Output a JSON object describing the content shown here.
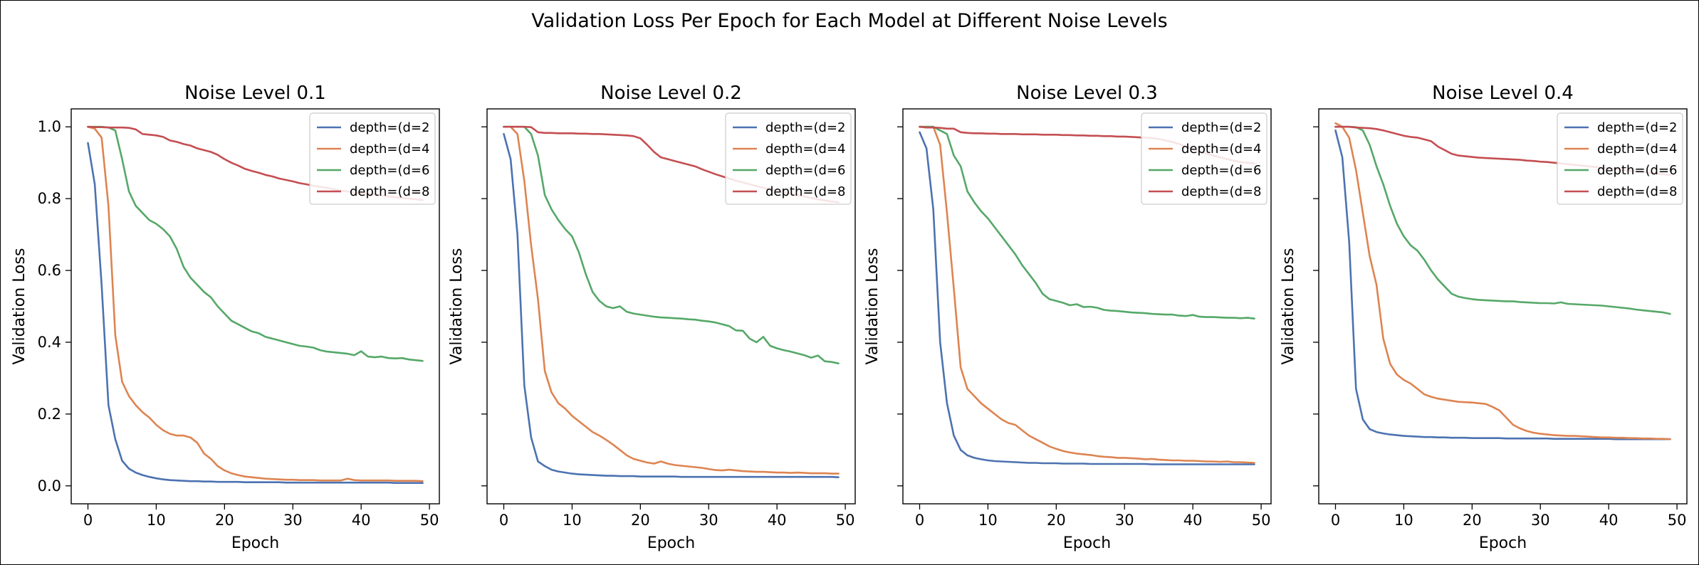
{
  "figure": {
    "title": "Validation Loss Per Epoch for Each Model at Different Noise Levels"
  },
  "colors": {
    "depth=(d=2": "#4c72b0",
    "depth=(d=4": "#dd8452",
    "depth=(d=6": "#55a868",
    "depth=(d=8": "#c44e52"
  },
  "chart_data": [
    {
      "type": "line",
      "title": "Noise Level 0.1",
      "xlabel": "Epoch",
      "ylabel": "Validation Loss",
      "xlim": [
        -2.45,
        51.45
      ],
      "ylim": [
        -0.05,
        1.05
      ],
      "xticks": [
        0,
        10,
        20,
        30,
        40,
        50
      ],
      "yticks": [
        0.0,
        0.2,
        0.4,
        0.6,
        0.8,
        1.0
      ],
      "legend": "top-right",
      "series": [
        {
          "name": "depth=(d=2",
          "values": [
            0.955,
            0.84,
            0.56,
            0.225,
            0.13,
            0.07,
            0.048,
            0.037,
            0.03,
            0.025,
            0.021,
            0.018,
            0.016,
            0.015,
            0.014,
            0.013,
            0.013,
            0.012,
            0.012,
            0.011,
            0.011,
            0.011,
            0.011,
            0.01,
            0.01,
            0.01,
            0.01,
            0.01,
            0.01,
            0.009,
            0.009,
            0.009,
            0.009,
            0.009,
            0.009,
            0.009,
            0.009,
            0.009,
            0.009,
            0.009,
            0.009,
            0.009,
            0.009,
            0.009,
            0.009,
            0.008,
            0.008,
            0.008,
            0.008,
            0.008
          ]
        },
        {
          "name": "depth=(d=4",
          "values": [
            1.0,
            0.995,
            0.97,
            0.78,
            0.42,
            0.29,
            0.25,
            0.225,
            0.205,
            0.19,
            0.17,
            0.155,
            0.145,
            0.14,
            0.14,
            0.135,
            0.12,
            0.09,
            0.075,
            0.055,
            0.043,
            0.035,
            0.03,
            0.026,
            0.024,
            0.022,
            0.02,
            0.019,
            0.018,
            0.017,
            0.017,
            0.016,
            0.016,
            0.016,
            0.015,
            0.015,
            0.015,
            0.015,
            0.02,
            0.016,
            0.015,
            0.015,
            0.015,
            0.015,
            0.015,
            0.014,
            0.014,
            0.014,
            0.014,
            0.013
          ]
        },
        {
          "name": "depth=(d=6",
          "values": [
            1.0,
            1.0,
            1.0,
            0.998,
            0.99,
            0.91,
            0.82,
            0.78,
            0.76,
            0.74,
            0.73,
            0.715,
            0.695,
            0.66,
            0.61,
            0.58,
            0.56,
            0.54,
            0.525,
            0.5,
            0.48,
            0.46,
            0.45,
            0.44,
            0.43,
            0.425,
            0.415,
            0.41,
            0.405,
            0.4,
            0.395,
            0.39,
            0.388,
            0.385,
            0.378,
            0.374,
            0.372,
            0.37,
            0.368,
            0.364,
            0.375,
            0.36,
            0.358,
            0.36,
            0.356,
            0.355,
            0.356,
            0.352,
            0.35,
            0.348
          ]
        },
        {
          "name": "depth=(d=8",
          "values": [
            1.0,
            0.999,
            0.999,
            0.998,
            0.998,
            0.998,
            0.997,
            0.993,
            0.98,
            0.978,
            0.976,
            0.972,
            0.962,
            0.958,
            0.952,
            0.948,
            0.94,
            0.935,
            0.93,
            0.922,
            0.91,
            0.9,
            0.892,
            0.883,
            0.877,
            0.872,
            0.866,
            0.862,
            0.856,
            0.852,
            0.848,
            0.843,
            0.84,
            0.836,
            0.833,
            0.83,
            0.826,
            0.822,
            0.82,
            0.817,
            0.815,
            0.813,
            0.811,
            0.809,
            0.806,
            0.804,
            0.802,
            0.8,
            0.798,
            0.796
          ]
        }
      ]
    },
    {
      "type": "line",
      "title": "Noise Level 0.2",
      "xlabel": "Epoch",
      "ylabel": "Validation Loss",
      "xlim": [
        -2.45,
        51.45
      ],
      "ylim": [
        -0.05,
        1.05
      ],
      "xticks": [
        0,
        10,
        20,
        30,
        40,
        50
      ],
      "yticks": [
        0.0,
        0.2,
        0.4,
        0.6,
        0.8,
        1.0
      ],
      "legend": "top-right",
      "series": [
        {
          "name": "depth=(d=2",
          "values": [
            0.98,
            0.91,
            0.7,
            0.28,
            0.135,
            0.068,
            0.055,
            0.045,
            0.04,
            0.037,
            0.034,
            0.032,
            0.031,
            0.03,
            0.029,
            0.028,
            0.028,
            0.027,
            0.027,
            0.027,
            0.026,
            0.026,
            0.026,
            0.026,
            0.026,
            0.026,
            0.025,
            0.025,
            0.025,
            0.025,
            0.025,
            0.025,
            0.025,
            0.025,
            0.025,
            0.025,
            0.025,
            0.025,
            0.025,
            0.025,
            0.025,
            0.025,
            0.025,
            0.025,
            0.025,
            0.025,
            0.025,
            0.025,
            0.025,
            0.024
          ]
        },
        {
          "name": "depth=(d=4",
          "values": [
            1.0,
            1.0,
            0.98,
            0.85,
            0.67,
            0.52,
            0.32,
            0.26,
            0.23,
            0.215,
            0.195,
            0.18,
            0.165,
            0.15,
            0.14,
            0.128,
            0.115,
            0.1,
            0.085,
            0.075,
            0.07,
            0.065,
            0.062,
            0.068,
            0.062,
            0.058,
            0.056,
            0.054,
            0.052,
            0.05,
            0.047,
            0.044,
            0.043,
            0.045,
            0.043,
            0.041,
            0.04,
            0.039,
            0.039,
            0.038,
            0.037,
            0.037,
            0.036,
            0.037,
            0.036,
            0.035,
            0.035,
            0.035,
            0.034,
            0.034
          ]
        },
        {
          "name": "depth=(d=6",
          "values": [
            1.0,
            1.0,
            1.0,
            1.0,
            0.98,
            0.92,
            0.81,
            0.77,
            0.74,
            0.715,
            0.695,
            0.65,
            0.59,
            0.54,
            0.515,
            0.5,
            0.495,
            0.5,
            0.485,
            0.48,
            0.477,
            0.474,
            0.471,
            0.469,
            0.468,
            0.467,
            0.466,
            0.464,
            0.463,
            0.46,
            0.458,
            0.455,
            0.45,
            0.445,
            0.433,
            0.432,
            0.41,
            0.4,
            0.415,
            0.39,
            0.383,
            0.378,
            0.374,
            0.369,
            0.364,
            0.357,
            0.363,
            0.347,
            0.345,
            0.341
          ]
        },
        {
          "name": "depth=(d=8",
          "values": [
            1.0,
            1.0,
            1.0,
            1.0,
            0.999,
            0.985,
            0.983,
            0.983,
            0.982,
            0.982,
            0.982,
            0.981,
            0.981,
            0.98,
            0.98,
            0.979,
            0.978,
            0.977,
            0.976,
            0.974,
            0.968,
            0.95,
            0.93,
            0.915,
            0.91,
            0.905,
            0.9,
            0.895,
            0.89,
            0.882,
            0.875,
            0.868,
            0.862,
            0.856,
            0.85,
            0.845,
            0.84,
            0.835,
            0.83,
            0.826,
            0.822,
            0.818,
            0.814,
            0.81,
            0.806,
            0.802,
            0.798,
            0.795,
            0.792,
            0.79
          ]
        }
      ]
    },
    {
      "type": "line",
      "title": "Noise Level 0.3",
      "xlabel": "Epoch",
      "ylabel": "Validation Loss",
      "xlim": [
        -2.45,
        51.45
      ],
      "ylim": [
        -0.05,
        1.05
      ],
      "xticks": [
        0,
        10,
        20,
        30,
        40,
        50
      ],
      "yticks": [
        0.0,
        0.2,
        0.4,
        0.6,
        0.8,
        1.0
      ],
      "legend": "top-right",
      "series": [
        {
          "name": "depth=(d=2",
          "values": [
            0.985,
            0.94,
            0.77,
            0.4,
            0.23,
            0.14,
            0.1,
            0.085,
            0.078,
            0.074,
            0.071,
            0.069,
            0.068,
            0.067,
            0.066,
            0.065,
            0.064,
            0.064,
            0.063,
            0.063,
            0.063,
            0.062,
            0.062,
            0.062,
            0.062,
            0.061,
            0.061,
            0.061,
            0.061,
            0.061,
            0.061,
            0.061,
            0.061,
            0.061,
            0.06,
            0.06,
            0.06,
            0.06,
            0.06,
            0.06,
            0.06,
            0.06,
            0.06,
            0.06,
            0.06,
            0.06,
            0.06,
            0.06,
            0.06,
            0.06
          ]
        },
        {
          "name": "depth=(d=4",
          "values": [
            1.0,
            1.0,
            1.0,
            0.95,
            0.76,
            0.55,
            0.33,
            0.27,
            0.25,
            0.23,
            0.215,
            0.2,
            0.185,
            0.175,
            0.17,
            0.155,
            0.14,
            0.13,
            0.12,
            0.11,
            0.103,
            0.097,
            0.093,
            0.09,
            0.088,
            0.086,
            0.083,
            0.081,
            0.08,
            0.078,
            0.078,
            0.077,
            0.076,
            0.074,
            0.075,
            0.073,
            0.072,
            0.071,
            0.071,
            0.07,
            0.07,
            0.069,
            0.068,
            0.068,
            0.067,
            0.068,
            0.066,
            0.066,
            0.065,
            0.064
          ]
        },
        {
          "name": "depth=(d=6",
          "values": [
            1.0,
            1.0,
            1.0,
            0.99,
            0.98,
            0.92,
            0.89,
            0.82,
            0.79,
            0.765,
            0.745,
            0.72,
            0.695,
            0.67,
            0.645,
            0.615,
            0.59,
            0.565,
            0.535,
            0.52,
            0.515,
            0.51,
            0.503,
            0.506,
            0.498,
            0.499,
            0.496,
            0.49,
            0.488,
            0.487,
            0.485,
            0.483,
            0.482,
            0.481,
            0.479,
            0.478,
            0.477,
            0.477,
            0.474,
            0.473,
            0.476,
            0.471,
            0.47,
            0.47,
            0.469,
            0.468,
            0.468,
            0.467,
            0.468,
            0.466
          ]
        },
        {
          "name": "depth=(d=8",
          "values": [
            1.0,
            0.998,
            0.998,
            0.997,
            0.995,
            0.995,
            0.985,
            0.983,
            0.982,
            0.982,
            0.981,
            0.981,
            0.98,
            0.98,
            0.98,
            0.979,
            0.979,
            0.979,
            0.978,
            0.978,
            0.978,
            0.977,
            0.977,
            0.976,
            0.976,
            0.975,
            0.975,
            0.974,
            0.974,
            0.973,
            0.973,
            0.972,
            0.971,
            0.97,
            0.969,
            0.966,
            0.962,
            0.958,
            0.952,
            0.945,
            0.938,
            0.932,
            0.925,
            0.92,
            0.915,
            0.91,
            0.906,
            0.902,
            0.9,
            0.898
          ]
        }
      ]
    },
    {
      "type": "line",
      "title": "Noise Level 0.4",
      "xlabel": "Epoch",
      "ylabel": "Validation Loss",
      "xlim": [
        -2.45,
        51.45
      ],
      "ylim": [
        -0.05,
        1.05
      ],
      "xticks": [
        0,
        10,
        20,
        30,
        40,
        50
      ],
      "yticks": [
        0.0,
        0.2,
        0.4,
        0.6,
        0.8,
        1.0
      ],
      "legend": "top-right",
      "series": [
        {
          "name": "depth=(d=2",
          "values": [
            0.99,
            0.915,
            0.68,
            0.27,
            0.185,
            0.158,
            0.15,
            0.146,
            0.143,
            0.141,
            0.139,
            0.138,
            0.137,
            0.136,
            0.136,
            0.135,
            0.135,
            0.134,
            0.134,
            0.134,
            0.133,
            0.133,
            0.133,
            0.133,
            0.133,
            0.132,
            0.132,
            0.132,
            0.132,
            0.132,
            0.132,
            0.132,
            0.131,
            0.131,
            0.131,
            0.131,
            0.131,
            0.131,
            0.131,
            0.131,
            0.131,
            0.13,
            0.13,
            0.13,
            0.13,
            0.13,
            0.13,
            0.13,
            0.13,
            0.13
          ]
        },
        {
          "name": "depth=(d=4",
          "values": [
            1.01,
            1.0,
            0.97,
            0.88,
            0.76,
            0.64,
            0.56,
            0.41,
            0.34,
            0.31,
            0.295,
            0.285,
            0.27,
            0.255,
            0.248,
            0.243,
            0.24,
            0.237,
            0.234,
            0.233,
            0.232,
            0.23,
            0.228,
            0.22,
            0.21,
            0.19,
            0.17,
            0.16,
            0.153,
            0.148,
            0.145,
            0.143,
            0.141,
            0.14,
            0.139,
            0.139,
            0.138,
            0.137,
            0.136,
            0.135,
            0.135,
            0.134,
            0.134,
            0.133,
            0.133,
            0.132,
            0.132,
            0.131,
            0.131,
            0.13
          ]
        },
        {
          "name": "depth=(d=6",
          "values": [
            1.0,
            1.0,
            1.0,
            0.999,
            0.99,
            0.95,
            0.89,
            0.84,
            0.78,
            0.73,
            0.695,
            0.67,
            0.655,
            0.63,
            0.6,
            0.575,
            0.555,
            0.535,
            0.527,
            0.523,
            0.52,
            0.518,
            0.517,
            0.516,
            0.515,
            0.514,
            0.514,
            0.512,
            0.511,
            0.51,
            0.509,
            0.509,
            0.508,
            0.511,
            0.507,
            0.506,
            0.505,
            0.504,
            0.503,
            0.502,
            0.5,
            0.498,
            0.496,
            0.494,
            0.491,
            0.489,
            0.487,
            0.485,
            0.483,
            0.479
          ]
        },
        {
          "name": "depth=(d=8",
          "values": [
            1.0,
            1.0,
            1.0,
            0.998,
            0.997,
            0.996,
            0.994,
            0.99,
            0.985,
            0.98,
            0.975,
            0.972,
            0.97,
            0.965,
            0.96,
            0.945,
            0.935,
            0.925,
            0.92,
            0.918,
            0.916,
            0.914,
            0.913,
            0.912,
            0.911,
            0.91,
            0.909,
            0.908,
            0.906,
            0.905,
            0.903,
            0.902,
            0.9,
            0.898,
            0.896,
            0.894,
            0.892,
            0.89,
            0.888,
            0.886,
            0.884,
            0.882,
            0.88,
            0.878,
            0.876,
            0.874,
            0.872,
            0.87,
            0.868,
            0.866
          ]
        }
      ]
    }
  ]
}
